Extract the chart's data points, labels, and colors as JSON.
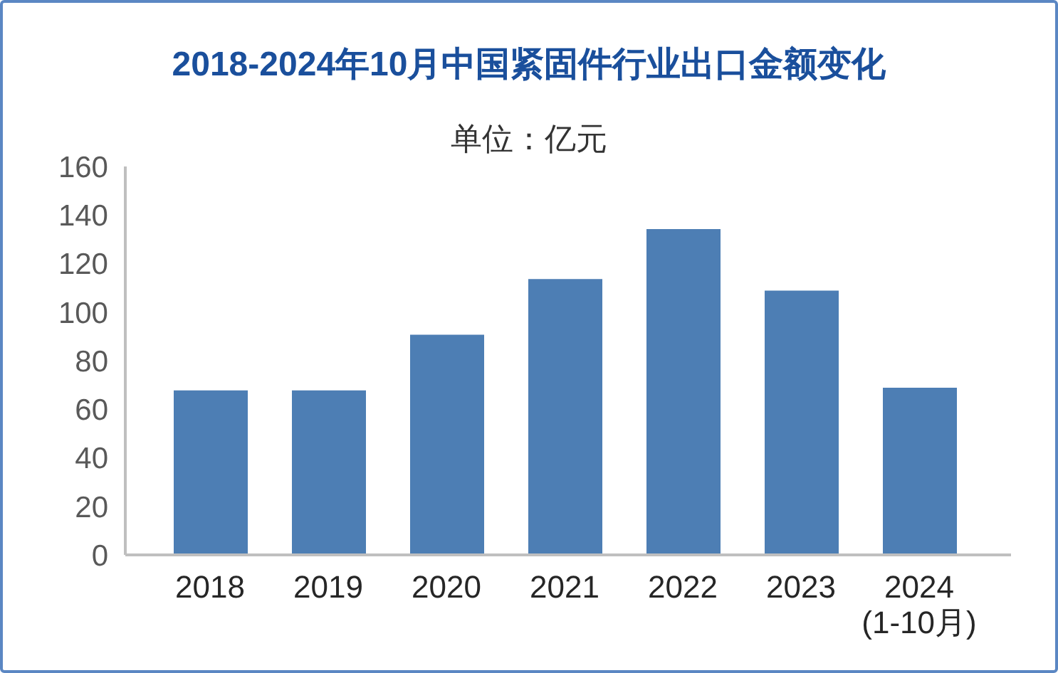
{
  "chart_data": {
    "type": "bar",
    "title": "2018-2024年10月中国紧固件行业出口金额变化",
    "subtitle": "单位：亿元",
    "categories": [
      "2018",
      "2019",
      "2020",
      "2021",
      "2022",
      "2023",
      "2024\n(1-10月)"
    ],
    "values": [
      67.8,
      67.8,
      90.7,
      113.6,
      134.2,
      108.9,
      68.9
    ],
    "color": "#4d7eb4",
    "ylim": [
      0,
      160
    ],
    "yticks": [
      0,
      20,
      40,
      60,
      80,
      100,
      120,
      140,
      160
    ]
  }
}
